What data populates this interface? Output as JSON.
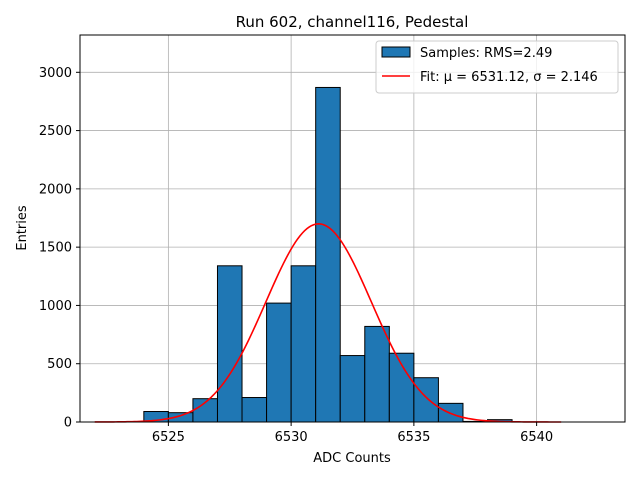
{
  "chart_data": {
    "type": "bar",
    "title": "Run 602, channel116, Pedestal",
    "xlabel": "ADC Counts",
    "ylabel": "Entries",
    "xlim": [
      6521.4,
      6543.6
    ],
    "ylim": [
      0,
      3320
    ],
    "xticks": [
      6525,
      6530,
      6535,
      6540
    ],
    "yticks": [
      0,
      500,
      1000,
      1500,
      2000,
      2500,
      3000
    ],
    "grid": true,
    "legend_position": "top-right",
    "histogram": {
      "name": "Samples: RMS=2.49",
      "color": "#1f77b4",
      "edgecolor": "#000000",
      "bins": [
        {
          "x0": 6524.0,
          "x1": 6525.0,
          "value": 90
        },
        {
          "x0": 6525.0,
          "x1": 6526.0,
          "value": 80
        },
        {
          "x0": 6526.0,
          "x1": 6527.0,
          "value": 200
        },
        {
          "x0": 6527.0,
          "x1": 6528.0,
          "value": 1340
        },
        {
          "x0": 6528.0,
          "x1": 6529.0,
          "value": 210
        },
        {
          "x0": 6529.0,
          "x1": 6530.0,
          "value": 1020
        },
        {
          "x0": 6530.0,
          "x1": 6531.0,
          "value": 1340
        },
        {
          "x0": 6531.0,
          "x1": 6532.0,
          "value": 2870
        },
        {
          "x0": 6532.0,
          "x1": 6533.0,
          "value": 570
        },
        {
          "x0": 6533.0,
          "x1": 6534.0,
          "value": 820
        },
        {
          "x0": 6534.0,
          "x1": 6535.0,
          "value": 590
        },
        {
          "x0": 6535.0,
          "x1": 6536.0,
          "value": 380
        },
        {
          "x0": 6536.0,
          "x1": 6537.0,
          "value": 160
        },
        {
          "x0": 6537.0,
          "x1": 6538.0,
          "value": 5
        },
        {
          "x0": 6538.0,
          "x1": 6539.0,
          "value": 20
        }
      ]
    },
    "fit": {
      "name": "Fit: μ = 6531.12, σ = 2.146",
      "color": "#ff0000",
      "mu": 6531.12,
      "sigma": 2.146,
      "amplitude": 1700,
      "x_start": 6522,
      "x_end": 6541
    }
  }
}
